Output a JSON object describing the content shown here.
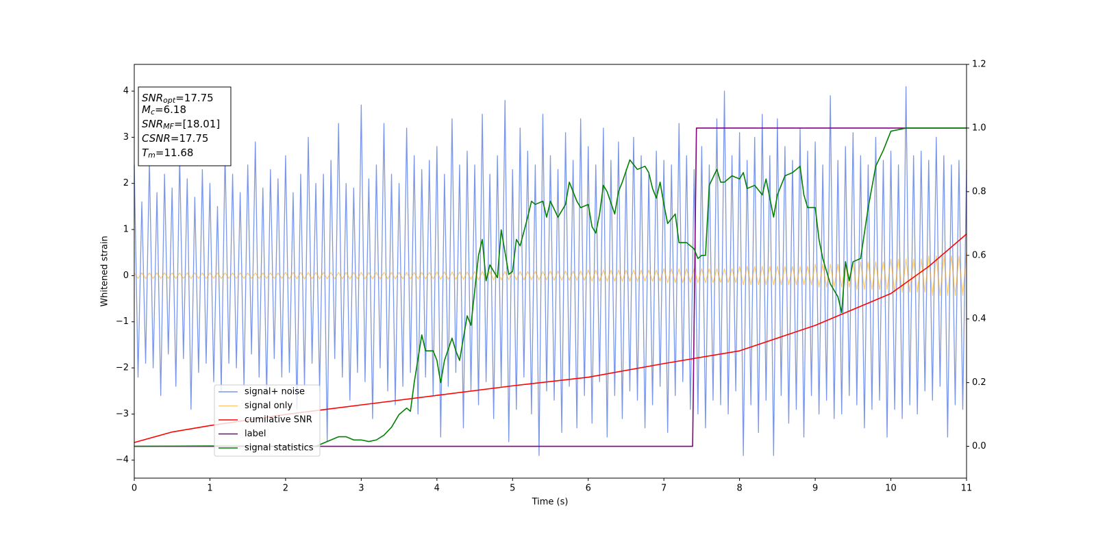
{
  "chart_data": {
    "type": "line",
    "xlabel": "Time (s)",
    "ylabel": "Whitened strain",
    "xlim": [
      0,
      11
    ],
    "ylim": [
      -4.39,
      4.58
    ],
    "y2lim": [
      -0.1,
      1.2
    ],
    "xticks": [
      0,
      1,
      2,
      3,
      4,
      5,
      6,
      7,
      8,
      9,
      10,
      11
    ],
    "yticks": [
      {
        "value": -4,
        "label": "−4"
      },
      {
        "value": -3,
        "label": "−3"
      },
      {
        "value": -2,
        "label": "−2"
      },
      {
        "value": -1,
        "label": "−1"
      },
      0,
      1,
      2,
      3,
      4
    ],
    "y2ticks": [
      {
        "value": 0,
        "label": "0.0"
      },
      0.2,
      0.4,
      0.6,
      0.8,
      {
        "value": 1,
        "label": "1.0"
      },
      1.2
    ],
    "legend": "lower left",
    "annotation": [
      {
        "text": "SNR",
        "sub": "opt",
        "rest": "=17.75"
      },
      {
        "text": "M",
        "sub": "c",
        "rest": "=6.18"
      },
      {
        "text": "SNR",
        "sub": "MF",
        "rest": "=[18.01]"
      },
      {
        "text": "CSNR",
        "rest": "=17.75"
      },
      {
        "text": "T",
        "sub": "m",
        "rest": "=11.68"
      }
    ],
    "x": [
      0,
      0.05,
      0.1,
      0.15,
      0.2,
      0.25,
      0.3,
      0.35,
      0.4,
      0.45,
      0.5,
      0.55,
      0.6,
      0.65,
      0.7,
      0.75,
      0.8,
      0.85,
      0.9,
      0.95,
      1,
      1.05,
      1.1,
      1.15,
      1.2,
      1.25,
      1.3,
      1.35,
      1.4,
      1.45,
      1.5,
      1.55,
      1.6,
      1.65,
      1.7,
      1.75,
      1.8,
      1.85,
      1.9,
      1.95,
      2,
      2.05,
      2.1,
      2.15,
      2.2,
      2.25,
      2.3,
      2.35,
      2.4,
      2.45,
      2.5,
      2.55,
      2.6,
      2.65,
      2.7,
      2.75,
      2.8,
      2.85,
      2.9,
      2.95,
      3,
      3.05,
      3.1,
      3.15,
      3.2,
      3.25,
      3.3,
      3.35,
      3.4,
      3.45,
      3.5,
      3.55,
      3.6,
      3.65,
      3.7,
      3.75,
      3.8,
      3.85,
      3.9,
      3.95,
      4,
      4.05,
      4.1,
      4.15,
      4.2,
      4.25,
      4.3,
      4.35,
      4.4,
      4.45,
      4.5,
      4.55,
      4.6,
      4.65,
      4.7,
      4.75,
      4.8,
      4.85,
      4.9,
      4.95,
      5,
      5.05,
      5.1,
      5.15,
      5.2,
      5.25,
      5.3,
      5.35,
      5.4,
      5.45,
      5.5,
      5.55,
      5.6,
      5.65,
      5.7,
      5.75,
      5.8,
      5.85,
      5.9,
      5.95,
      6,
      6.05,
      6.1,
      6.15,
      6.2,
      6.25,
      6.3,
      6.35,
      6.4,
      6.45,
      6.5,
      6.55,
      6.6,
      6.65,
      6.7,
      6.75,
      6.8,
      6.85,
      6.9,
      6.95,
      7,
      7.05,
      7.1,
      7.15,
      7.2,
      7.25,
      7.3,
      7.35,
      7.4,
      7.45,
      7.5,
      7.55,
      7.6,
      7.65,
      7.7,
      7.75,
      7.8,
      7.85,
      7.9,
      7.95,
      8,
      8.05,
      8.1,
      8.15,
      8.2,
      8.25,
      8.3,
      8.35,
      8.4,
      8.45,
      8.5,
      8.55,
      8.6,
      8.65,
      8.7,
      8.75,
      8.8,
      8.85,
      8.9,
      8.95,
      9,
      9.05,
      9.1,
      9.15,
      9.2,
      9.25,
      9.3,
      9.35,
      9.4,
      9.45,
      9.5,
      9.55,
      9.6,
      9.65,
      9.7,
      9.75,
      9.8,
      9.85,
      9.9,
      9.95,
      10,
      10.05,
      10.1,
      10.15,
      10.2,
      10.25,
      10.3,
      10.35,
      10.4,
      10.45,
      10.5,
      10.55,
      10.6,
      10.65,
      10.7,
      10.75,
      10.8,
      10.85,
      10.9,
      10.95,
      11
    ],
    "series": [
      {
        "name": "signal+ noise",
        "color": "#4169e1",
        "alpha": 0.7,
        "values": [
          2.4,
          -2.2,
          1.6,
          -1.9,
          2.5,
          -2.0,
          1.8,
          -2.6,
          2.2,
          -1.7,
          1.9,
          -2.4,
          2.6,
          -1.8,
          2.1,
          -2.9,
          1.7,
          -2.1,
          2.3,
          -1.9,
          2.0,
          -2.3,
          1.5,
          -2.5,
          2.7,
          -1.9,
          2.2,
          -2.0,
          1.8,
          -2.4,
          2.4,
          -1.7,
          2.9,
          -2.2,
          1.9,
          -2.6,
          2.3,
          -1.8,
          2.1,
          -2.2,
          2.6,
          -2.1,
          1.8,
          -2.9,
          2.2,
          -2.4,
          3.0,
          -1.9,
          2.0,
          -2.5,
          2.2,
          -3.6,
          2.5,
          -1.8,
          3.3,
          -2.2,
          2.0,
          -2.7,
          1.9,
          -2.1,
          3.7,
          -2.3,
          2.1,
          -3.1,
          2.4,
          -2.0,
          3.3,
          -2.5,
          2.2,
          -2.8,
          2.0,
          -2.4,
          3.2,
          -2.1,
          2.6,
          -3.0,
          2.3,
          -2.2,
          2.5,
          -2.6,
          2.8,
          -3.5,
          2.2,
          -2.4,
          3.4,
          -2.1,
          2.4,
          -3.3,
          2.7,
          -2.5,
          2.4,
          -2.8,
          3.5,
          -2.3,
          2.2,
          -3.1,
          2.6,
          -2.4,
          3.8,
          -3.6,
          2.3,
          -2.9,
          3.2,
          -2.2,
          2.7,
          -3.0,
          2.4,
          -3.9,
          3.5,
          -2.5,
          2.6,
          -2.7,
          2.3,
          -3.4,
          3.1,
          -2.4,
          2.5,
          -3.3,
          3.4,
          -2.6,
          2.8,
          -3.2,
          2.4,
          -2.3,
          3.2,
          -3.5,
          2.5,
          -2.6,
          2.9,
          -3.1,
          2.3,
          -2.5,
          3.0,
          -2.7,
          2.6,
          -3.3,
          2.2,
          -2.8,
          2.7,
          -2.4,
          2.5,
          -3.4,
          2.4,
          -2.6,
          3.3,
          -2.3,
          2.6,
          -2.9,
          2.3,
          -3.0,
          2.8,
          -3.3,
          2.4,
          -2.7,
          3.4,
          -2.8,
          4.0,
          -3.0,
          2.6,
          -2.5,
          3.1,
          -3.9,
          2.5,
          -2.8,
          3.0,
          -3.4,
          3.5,
          -2.7,
          2.6,
          -3.9,
          3.4,
          -2.6,
          2.8,
          -3.2,
          2.5,
          -2.9,
          3.2,
          -3.5,
          2.7,
          -2.6,
          2.9,
          -3.0,
          2.4,
          -2.7,
          3.9,
          -3.1,
          2.5,
          -3.0,
          2.8,
          -2.6,
          3.1,
          -2.8,
          2.6,
          -3.3,
          2.4,
          -2.9,
          3.0,
          -2.7,
          2.5,
          -3.5,
          2.7,
          -2.9,
          2.4,
          -3.1,
          4.1,
          -2.8,
          2.6,
          -3.0,
          2.7,
          -2.5,
          2.5,
          -2.7,
          3.0,
          -2.4,
          2.6,
          -3.5,
          2.4,
          -2.8,
          2.5,
          -2.9,
          2.3
        ]
      },
      {
        "name": "signal only",
        "color": "#ffa500",
        "alpha": 0.55,
        "values": [
          0.06,
          -0.06,
          0.06,
          -0.06,
          0.06,
          -0.06,
          0.06,
          -0.06,
          0.06,
          -0.06,
          0.06,
          -0.06,
          0.06,
          -0.06,
          0.06,
          -0.06,
          0.06,
          -0.06,
          0.06,
          -0.06,
          0.06,
          -0.06,
          0.06,
          -0.06,
          0.06,
          -0.06,
          0.06,
          -0.06,
          0.06,
          -0.06,
          0.06,
          -0.06,
          0.06,
          -0.06,
          0.06,
          -0.06,
          0.06,
          -0.06,
          0.06,
          -0.06,
          0.07,
          -0.07,
          0.07,
          -0.07,
          0.07,
          -0.07,
          0.07,
          -0.07,
          0.07,
          -0.07,
          0.07,
          -0.07,
          0.07,
          -0.07,
          0.07,
          -0.07,
          0.07,
          -0.07,
          0.07,
          -0.07,
          0.07,
          -0.07,
          0.07,
          -0.07,
          0.07,
          -0.07,
          0.07,
          -0.07,
          0.07,
          -0.07,
          0.07,
          -0.07,
          0.07,
          -0.07,
          0.07,
          -0.07,
          0.07,
          -0.07,
          0.07,
          -0.07,
          0.08,
          -0.08,
          0.08,
          -0.08,
          0.08,
          -0.08,
          0.08,
          -0.08,
          0.08,
          -0.08,
          0.09,
          -0.09,
          0.09,
          -0.09,
          0.09,
          -0.09,
          0.09,
          -0.09,
          0.09,
          -0.09,
          0.09,
          -0.09,
          0.09,
          -0.09,
          0.09,
          -0.09,
          0.09,
          -0.09,
          0.09,
          -0.09,
          0.1,
          -0.1,
          0.1,
          -0.1,
          0.1,
          -0.1,
          0.1,
          -0.1,
          0.1,
          -0.1,
          0.12,
          -0.12,
          0.12,
          -0.12,
          0.12,
          -0.12,
          0.12,
          -0.12,
          0.12,
          -0.12,
          0.12,
          -0.12,
          0.12,
          -0.12,
          0.12,
          -0.12,
          0.12,
          -0.12,
          0.12,
          -0.12,
          0.15,
          -0.15,
          0.15,
          -0.15,
          0.15,
          -0.15,
          0.15,
          -0.15,
          0.15,
          -0.15,
          0.15,
          -0.15,
          0.15,
          -0.15,
          0.15,
          -0.15,
          0.15,
          -0.15,
          0.15,
          -0.15,
          0.2,
          -0.2,
          0.2,
          -0.2,
          0.2,
          -0.2,
          0.2,
          -0.2,
          0.2,
          -0.2,
          0.2,
          -0.2,
          0.2,
          -0.2,
          0.2,
          -0.2,
          0.2,
          -0.2,
          0.2,
          -0.2,
          0.25,
          -0.25,
          0.25,
          -0.25,
          0.25,
          -0.25,
          0.25,
          -0.25,
          0.25,
          -0.25,
          0.3,
          -0.3,
          0.3,
          -0.3,
          0.3,
          -0.3,
          0.3,
          -0.3,
          0.3,
          -0.3,
          0.36,
          -0.36,
          0.36,
          -0.36,
          0.36,
          -0.36,
          0.36,
          -0.36,
          0.36,
          -0.36,
          0.43,
          -0.43,
          0.43,
          -0.43,
          0.43,
          -0.43,
          0.43,
          -0.43,
          0.43,
          -0.43,
          0.5
        ]
      },
      {
        "name": "cumilative SNR",
        "color": "#ff0000",
        "axis": "y2",
        "x": [
          0,
          0.5,
          1,
          2,
          3,
          4,
          5,
          6,
          7,
          8,
          9,
          9.5,
          10,
          10.5,
          11
        ],
        "values": [
          0.012,
          0.045,
          0.065,
          0.1,
          0.13,
          0.16,
          0.19,
          0.217,
          0.26,
          0.3,
          0.38,
          0.43,
          0.48,
          0.565,
          0.667
        ]
      },
      {
        "name": "label",
        "color": "#800080",
        "axis": "y2",
        "x": [
          0,
          7.38,
          7.43,
          11
        ],
        "values": [
          0,
          0,
          1,
          1
        ]
      },
      {
        "name": "signal statistics",
        "color": "#008000",
        "axis": "y2",
        "x": [
          0,
          1,
          2,
          2.4,
          2.6,
          2.7,
          2.8,
          2.9,
          3.0,
          3.1,
          3.2,
          3.3,
          3.4,
          3.5,
          3.6,
          3.65,
          3.7,
          3.8,
          3.85,
          3.95,
          4.0,
          4.05,
          4.1,
          4.2,
          4.25,
          4.3,
          4.4,
          4.45,
          4.55,
          4.6,
          4.65,
          4.7,
          4.8,
          4.85,
          4.95,
          5.0,
          5.05,
          5.1,
          5.2,
          5.25,
          5.3,
          5.4,
          5.45,
          5.5,
          5.6,
          5.7,
          5.75,
          5.85,
          5.9,
          6.0,
          6.05,
          6.1,
          6.15,
          6.2,
          6.25,
          6.35,
          6.4,
          6.45,
          6.55,
          6.65,
          6.75,
          6.8,
          6.85,
          6.9,
          6.95,
          7.0,
          7.05,
          7.15,
          7.2,
          7.3,
          7.4,
          7.45,
          7.5,
          7.55,
          7.6,
          7.7,
          7.75,
          7.8,
          7.9,
          8.0,
          8.05,
          8.1,
          8.2,
          8.3,
          8.35,
          8.45,
          8.5,
          8.6,
          8.7,
          8.8,
          8.85,
          8.9,
          9.0,
          9.05,
          9.1,
          9.2,
          9.3,
          9.35,
          9.4,
          9.45,
          9.5,
          9.6,
          9.7,
          9.8,
          9.9,
          10.0,
          10.2,
          11
        ],
        "values": [
          0,
          0.001,
          0,
          0,
          0.02,
          0.03,
          0.03,
          0.02,
          0.02,
          0.015,
          0.02,
          0.035,
          0.06,
          0.1,
          0.12,
          0.11,
          0.2,
          0.35,
          0.3,
          0.3,
          0.27,
          0.2,
          0.27,
          0.34,
          0.3,
          0.27,
          0.41,
          0.38,
          0.6,
          0.65,
          0.52,
          0.57,
          0.53,
          0.68,
          0.54,
          0.55,
          0.65,
          0.63,
          0.72,
          0.77,
          0.76,
          0.77,
          0.72,
          0.77,
          0.72,
          0.76,
          0.83,
          0.77,
          0.75,
          0.76,
          0.69,
          0.67,
          0.73,
          0.82,
          0.8,
          0.73,
          0.8,
          0.83,
          0.9,
          0.87,
          0.88,
          0.86,
          0.81,
          0.78,
          0.83,
          0.76,
          0.7,
          0.73,
          0.64,
          0.64,
          0.62,
          0.59,
          0.6,
          0.6,
          0.82,
          0.87,
          0.83,
          0.83,
          0.85,
          0.84,
          0.86,
          0.81,
          0.82,
          0.79,
          0.84,
          0.72,
          0.79,
          0.85,
          0.86,
          0.88,
          0.79,
          0.75,
          0.75,
          0.65,
          0.59,
          0.51,
          0.47,
          0.42,
          0.58,
          0.52,
          0.58,
          0.59,
          0.75,
          0.88,
          0.93,
          0.99,
          1,
          1
        ]
      }
    ]
  }
}
